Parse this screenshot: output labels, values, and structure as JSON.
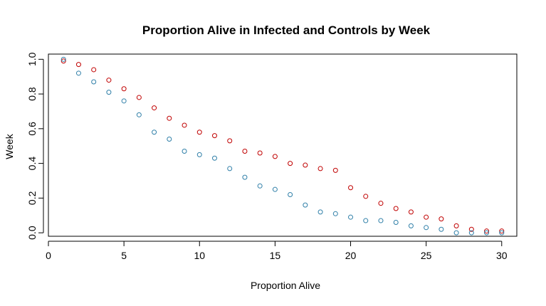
{
  "chart_data": {
    "type": "scatter",
    "title": "Proportion Alive in Infected and Controls by Week",
    "xlabel": "Proportion Alive",
    "ylabel": "Week",
    "xlim": [
      0,
      31
    ],
    "ylim": [
      -0.02,
      1.03
    ],
    "xticks": [
      0,
      5,
      10,
      15,
      20,
      25,
      30
    ],
    "yticks": [
      0.0,
      0.2,
      0.4,
      0.6,
      0.8,
      1.0
    ],
    "xtick_labels": [
      "0",
      "5",
      "10",
      "15",
      "20",
      "25",
      "30"
    ],
    "ytick_labels": [
      "0.0",
      "0.2",
      "0.4",
      "0.6",
      "0.8",
      "1.0"
    ],
    "grid": false,
    "legend": "none",
    "x": [
      1,
      2,
      3,
      4,
      5,
      6,
      7,
      8,
      9,
      10,
      11,
      12,
      13,
      14,
      15,
      16,
      17,
      18,
      19,
      20,
      21,
      22,
      23,
      24,
      25,
      26,
      27,
      28,
      29,
      30
    ],
    "series": [
      {
        "color": "#c00000",
        "values": [
          0.99,
          0.97,
          0.94,
          0.88,
          0.83,
          0.78,
          0.72,
          0.66,
          0.62,
          0.58,
          0.56,
          0.53,
          0.47,
          0.46,
          0.44,
          0.4,
          0.39,
          0.37,
          0.36,
          0.26,
          0.21,
          0.17,
          0.14,
          0.12,
          0.09,
          0.08,
          0.04,
          0.02,
          0.01,
          0.01
        ]
      },
      {
        "color": "#2f7fa8",
        "values": [
          1.0,
          0.92,
          0.87,
          0.81,
          0.76,
          0.68,
          0.58,
          0.54,
          0.47,
          0.45,
          0.43,
          0.37,
          0.32,
          0.27,
          0.25,
          0.22,
          0.16,
          0.12,
          0.11,
          0.09,
          0.07,
          0.07,
          0.06,
          0.04,
          0.03,
          0.02,
          0.0,
          0.0,
          0.0,
          0.0
        ]
      }
    ]
  }
}
